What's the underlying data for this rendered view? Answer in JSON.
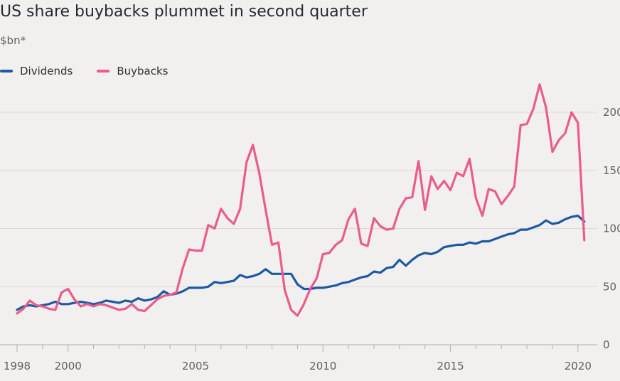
{
  "chart_data": {
    "type": "line",
    "title": "US share buybacks plummet in second quarter",
    "subtitle": "$bn*",
    "ylim": [
      0,
      225
    ],
    "xlim": [
      1998,
      2020.5
    ],
    "y_ticks": [
      0,
      50,
      100,
      150,
      200
    ],
    "x_ticks": [
      1998,
      2000,
      2005,
      2010,
      2015,
      2020
    ],
    "x_tick_labels": [
      "1998",
      "2000",
      "2005",
      "2010",
      "2015",
      "2020"
    ],
    "grid": true,
    "legend_position": "top-left",
    "series": [
      {
        "name": "Dividends",
        "color": "#1c5aa3",
        "x": [
          1998,
          1998.25,
          1998.5,
          1998.75,
          1999,
          1999.25,
          1999.5,
          1999.75,
          2000,
          2000.25,
          2000.5,
          2000.75,
          2001,
          2001.25,
          2001.5,
          2001.75,
          2002,
          2002.25,
          2002.5,
          2002.75,
          2003,
          2003.25,
          2003.5,
          2003.75,
          2004,
          2004.25,
          2004.5,
          2004.75,
          2005,
          2005.25,
          2005.5,
          2005.75,
          2006,
          2006.25,
          2006.5,
          2006.75,
          2007,
          2007.25,
          2007.5,
          2007.75,
          2008,
          2008.25,
          2008.5,
          2008.75,
          2009,
          2009.25,
          2009.5,
          2009.75,
          2010,
          2010.25,
          2010.5,
          2010.75,
          2011,
          2011.25,
          2011.5,
          2011.75,
          2012,
          2012.25,
          2012.5,
          2012.75,
          2013,
          2013.25,
          2013.5,
          2013.75,
          2014,
          2014.25,
          2014.5,
          2014.75,
          2015,
          2015.25,
          2015.5,
          2015.75,
          2016,
          2016.25,
          2016.5,
          2016.75,
          2017,
          2017.25,
          2017.5,
          2017.75,
          2018,
          2018.25,
          2018.5,
          2018.75,
          2019,
          2019.25,
          2019.5,
          2019.75,
          2020,
          2020.25
        ],
        "values": [
          30,
          33,
          34,
          33,
          34,
          35,
          37,
          35,
          35,
          36,
          37,
          36,
          35,
          36,
          38,
          37,
          36,
          38,
          37,
          40,
          38,
          39,
          41,
          46,
          43,
          44,
          46,
          49,
          49,
          49,
          50,
          54,
          53,
          54,
          55,
          60,
          58,
          59,
          61,
          65,
          61,
          61,
          61,
          61,
          52,
          48,
          48,
          49,
          49,
          50,
          51,
          53,
          54,
          56,
          58,
          59,
          63,
          62,
          66,
          67,
          73,
          68,
          73,
          77,
          79,
          78,
          80,
          84,
          85,
          86,
          86,
          88,
          87,
          89,
          89,
          91,
          93,
          95,
          96,
          99,
          99,
          101,
          103,
          107,
          104,
          105,
          108,
          110,
          111,
          106
        ]
      },
      {
        "name": "Buybacks",
        "color": "#e95d8c",
        "x": [
          1998,
          1998.25,
          1998.5,
          1998.75,
          1999,
          1999.25,
          1999.5,
          1999.75,
          2000,
          2000.25,
          2000.5,
          2000.75,
          2001,
          2001.25,
          2001.5,
          2001.75,
          2002,
          2002.25,
          2002.5,
          2002.75,
          2003,
          2003.25,
          2003.5,
          2003.75,
          2004,
          2004.25,
          2004.5,
          2004.75,
          2005,
          2005.25,
          2005.5,
          2005.75,
          2006,
          2006.25,
          2006.5,
          2006.75,
          2007,
          2007.25,
          2007.5,
          2007.75,
          2008,
          2008.25,
          2008.5,
          2008.75,
          2009,
          2009.25,
          2009.5,
          2009.75,
          2010,
          2010.25,
          2010.5,
          2010.75,
          2011,
          2011.25,
          2011.5,
          2011.75,
          2012,
          2012.25,
          2012.5,
          2012.75,
          2013,
          2013.25,
          2013.5,
          2013.75,
          2014,
          2014.25,
          2014.5,
          2014.75,
          2015,
          2015.25,
          2015.5,
          2015.75,
          2016,
          2016.25,
          2016.5,
          2016.75,
          2017,
          2017.25,
          2017.5,
          2017.75,
          2018,
          2018.25,
          2018.5,
          2018.75,
          2019,
          2019.25,
          2019.5,
          2019.75,
          2020,
          2020.25
        ],
        "values": [
          27,
          31,
          38,
          34,
          33,
          31,
          30,
          45,
          48,
          39,
          33,
          35,
          33,
          35,
          34,
          32,
          30,
          31,
          35,
          30,
          29,
          34,
          39,
          42,
          43,
          45,
          66,
          82,
          81,
          81,
          103,
          100,
          117,
          109,
          104,
          117,
          157,
          172,
          148,
          116,
          86,
          88,
          47,
          30,
          25,
          35,
          48,
          57,
          78,
          79,
          86,
          90,
          108,
          117,
          87,
          85,
          109,
          102,
          99,
          100,
          117,
          126,
          127,
          158,
          116,
          145,
          134,
          141,
          133,
          148,
          145,
          160,
          126,
          111,
          134,
          132,
          121,
          128,
          136,
          189,
          190,
          203,
          224,
          204,
          166,
          176,
          182,
          200,
          191,
          90
        ]
      }
    ]
  }
}
